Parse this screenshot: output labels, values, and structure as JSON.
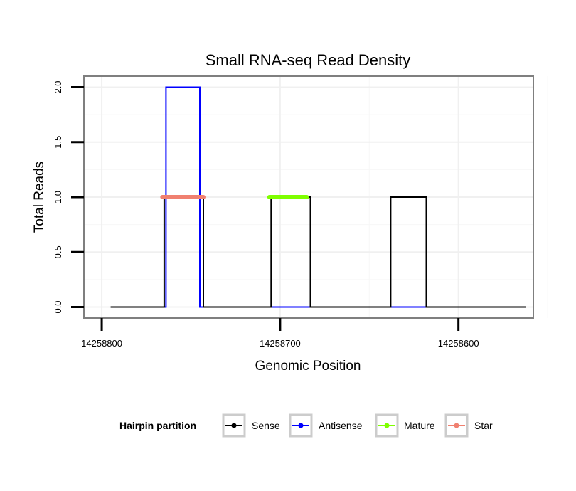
{
  "chart_data": {
    "type": "line",
    "title": "Small RNA-seq Read Density",
    "xlabel": "Genomic Position",
    "ylabel": "Total Reads",
    "x_reversed": true,
    "xlim": [
      14258810,
      14258558
    ],
    "ylim": [
      -0.1,
      2.1
    ],
    "x_ticks": [
      14258800,
      14258700,
      14258600
    ],
    "x_tick_labels": [
      "14258800",
      "14258700",
      "14258600"
    ],
    "y_ticks": [
      0.0,
      0.5,
      1.0,
      1.5,
      2.0
    ],
    "y_tick_labels": [
      "0.0",
      "0.5",
      "1.0",
      "1.5",
      "2.0"
    ],
    "grid": true,
    "series": [
      {
        "name": "Sense",
        "color": "#000000",
        "x": [
          14258795,
          14258770,
          14258765,
          14258765,
          14258743,
          14258743,
          14258705,
          14258705,
          14258683,
          14258683,
          14258638,
          14258638,
          14258618,
          14258618,
          14258562
        ],
        "y": [
          0,
          0,
          0,
          1,
          1,
          0,
          0,
          1,
          1,
          0,
          0,
          1,
          1,
          0,
          0
        ]
      },
      {
        "name": "Antisense",
        "color": "#0000ff",
        "x": [
          14258770,
          14258764,
          14258764,
          14258745,
          14258745,
          14258730,
          14258708,
          14258686,
          14258640,
          14258618
        ],
        "y": [
          0,
          0,
          2,
          2,
          0,
          0,
          0,
          0,
          0,
          0
        ]
      },
      {
        "name": "Mature",
        "color": "#7fff00",
        "x": [
          14258706,
          14258685
        ],
        "y": [
          1,
          1
        ]
      },
      {
        "name": "Star",
        "color": "#f08070",
        "x": [
          14258766,
          14258743
        ],
        "y": [
          1,
          1
        ]
      }
    ],
    "legend": {
      "title": "Hairpin partition",
      "position": "bottom",
      "entries": [
        "Sense",
        "Antisense",
        "Mature",
        "Star"
      ]
    }
  }
}
